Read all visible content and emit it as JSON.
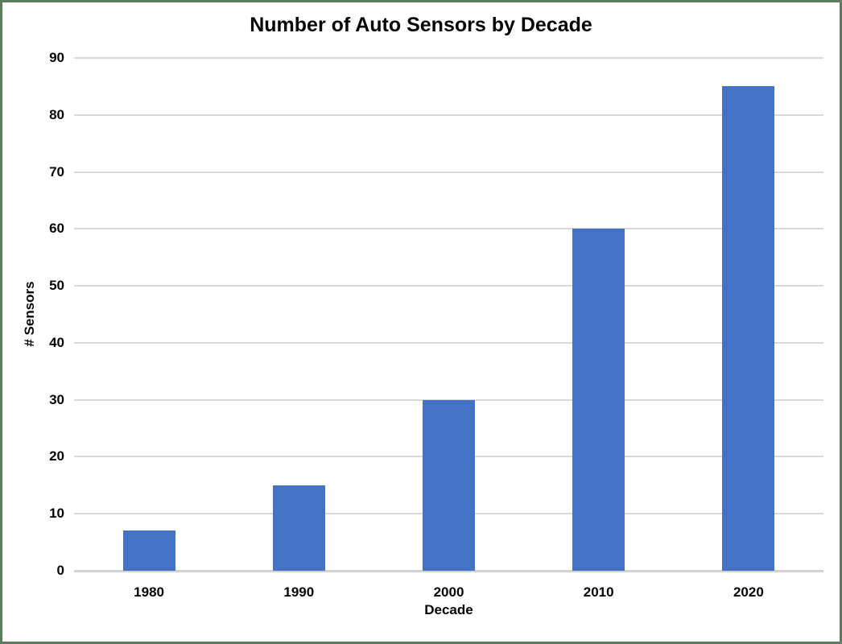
{
  "chart_data": {
    "type": "bar",
    "title": "Number of Auto Sensors by Decade",
    "xlabel": "Decade",
    "ylabel": "# Sensors",
    "categories": [
      "1980",
      "1990",
      "2000",
      "2010",
      "2020"
    ],
    "values": [
      7,
      15,
      30,
      60,
      85
    ],
    "ylim": [
      0,
      90
    ],
    "ytick_step": 10,
    "ytick_labels": [
      "0",
      "10",
      "20",
      "30",
      "40",
      "50",
      "60",
      "70",
      "80",
      "90"
    ],
    "grid": true,
    "legend": "none",
    "colors": {
      "bar_fill": "#4472c4",
      "gridline": "#d9d9d9",
      "zero_line": "#d2d2d2",
      "text": "#050505",
      "window_border": "#5d7b60",
      "background": "#ffffff"
    }
  }
}
